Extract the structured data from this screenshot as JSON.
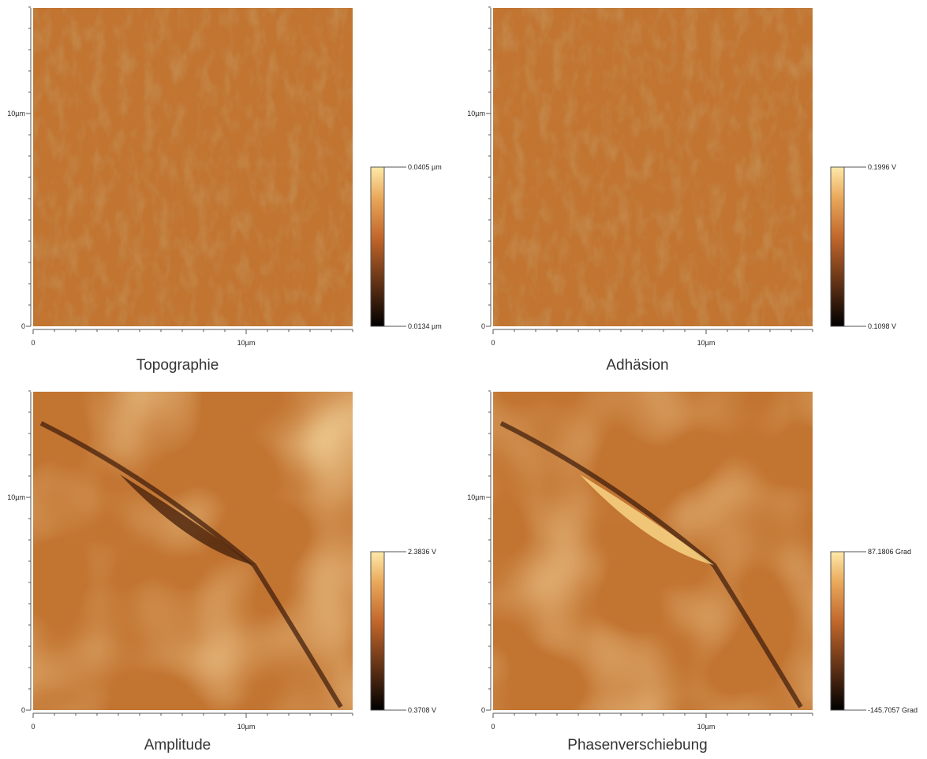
{
  "panels": [
    {
      "title": "Topographie",
      "y_ticks": [
        "10µm",
        "0"
      ],
      "x_ticks": [
        "0",
        "10µm"
      ],
      "colorbar": {
        "max": "0.0405 µm",
        "min": "0.0134 µm"
      }
    },
    {
      "title": "Adhäsion",
      "y_ticks": [
        "10µm",
        "0"
      ],
      "x_ticks": [
        "0",
        "10µm"
      ],
      "colorbar": {
        "max": "0.1996 V",
        "min": "0.1098 V"
      }
    },
    {
      "title": "Amplitude",
      "y_ticks": [
        "10µm",
        "0"
      ],
      "x_ticks": [
        "0",
        "10µm"
      ],
      "colorbar": {
        "max": "2.3836 V",
        "min": "0.3708 V"
      }
    },
    {
      "title": "Phasenverschiebung",
      "y_ticks": [
        "10µm",
        "0"
      ],
      "x_ticks": [
        "0",
        "10µm"
      ],
      "colorbar": {
        "max": "87.1806 Grad",
        "min": "-145.7057 Grad"
      }
    }
  ]
}
